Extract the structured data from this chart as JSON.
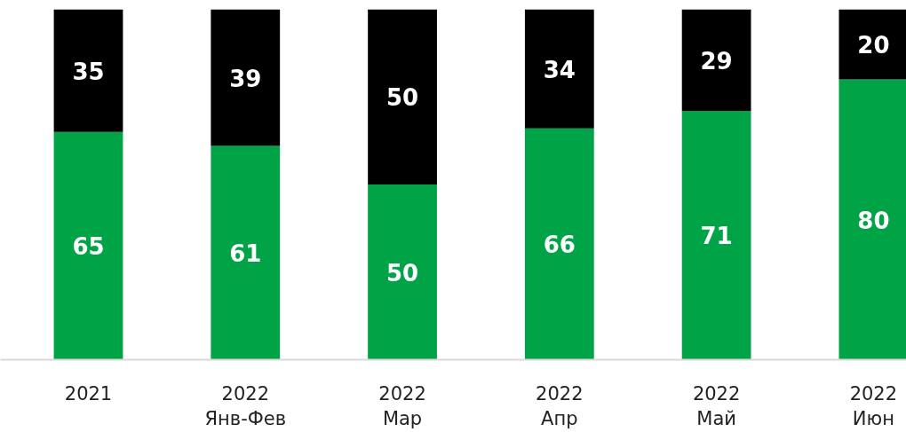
{
  "chart_data": {
    "type": "bar",
    "stacked": true,
    "data_labels": true,
    "grid": false,
    "categories": [
      "2021",
      "2022\nЯнв-Фев",
      "2022\nМар",
      "2022\nАпр",
      "2022\nМай",
      "2022\nИюн"
    ],
    "series": [
      {
        "color": "#00a346",
        "values": [
          65,
          61,
          50,
          66,
          71,
          80
        ]
      },
      {
        "color": "#000000",
        "values": [
          35,
          39,
          50,
          34,
          29,
          20
        ]
      }
    ]
  }
}
